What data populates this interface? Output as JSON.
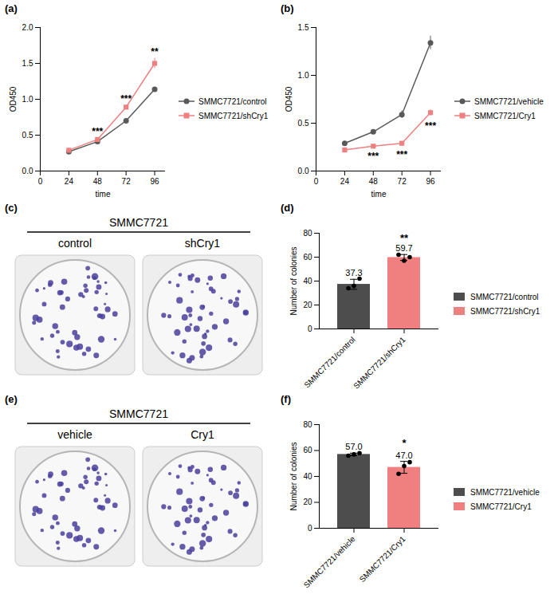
{
  "chart_data": [
    {
      "panel": "(a)",
      "type": "line",
      "x_label": "time",
      "y_label": "OD450",
      "x": [
        24,
        48,
        72,
        96
      ],
      "xlim": [
        0,
        105
      ],
      "xticks": [
        0,
        24,
        48,
        72,
        96
      ],
      "ylim": [
        0,
        2
      ],
      "yticks": [
        {
          "value": 0,
          "label": "0.0"
        },
        0.5,
        {
          "value": 1,
          "label": "1.0"
        },
        1.5,
        {
          "value": 2,
          "label": "2.0"
        }
      ],
      "legend": "right",
      "series": [
        {
          "name": "SMMC7721/control",
          "color": "#595959",
          "marker": "circle",
          "values": [
            0.27,
            0.41,
            0.7,
            1.14
          ],
          "errors": [
            0.01,
            0.01,
            0.02,
            0.02
          ]
        },
        {
          "name": "SMMC7721/shCry1",
          "color": "#f08080",
          "marker": "square",
          "values": [
            0.29,
            0.44,
            0.89,
            1.5
          ],
          "errors": [
            0.01,
            0.02,
            0.03,
            0.07
          ]
        }
      ],
      "annotations": [
        {
          "x": 48,
          "y": 0.55,
          "text": "***"
        },
        {
          "x": 72,
          "y": 1.0,
          "text": "***"
        },
        {
          "x": 96,
          "y": 1.66,
          "text": "**"
        }
      ]
    },
    {
      "panel": "(b)",
      "type": "line",
      "x_label": "time",
      "y_label": "OD450",
      "x": [
        24,
        48,
        72,
        96
      ],
      "xlim": [
        0,
        105
      ],
      "xticks": [
        0,
        24,
        48,
        72,
        96
      ],
      "ylim": [
        0,
        1.5
      ],
      "yticks": [
        {
          "value": 0,
          "label": "0.0"
        },
        0.5,
        {
          "value": 1,
          "label": "1.0"
        },
        1.5
      ],
      "legend": "right",
      "series": [
        {
          "name": "SMMC7721/vehicle",
          "color": "#595959",
          "marker": "circle",
          "values": [
            0.29,
            0.41,
            0.59,
            1.34
          ],
          "errors": [
            0.01,
            0.01,
            0.04,
            0.07
          ]
        },
        {
          "name": "SMMC7721/Cry1",
          "color": "#f08080",
          "marker": "square",
          "values": [
            0.22,
            0.26,
            0.29,
            0.61
          ],
          "errors": [
            0.01,
            0.01,
            0.02,
            0.03
          ]
        }
      ],
      "annotations": [
        {
          "x": 48,
          "y": 0.15,
          "text": "***"
        },
        {
          "x": 72,
          "y": 0.17,
          "text": "***"
        },
        {
          "x": 96,
          "y": 0.47,
          "text": "***"
        }
      ]
    },
    {
      "panel": "(d)",
      "type": "bar",
      "y_label": "Number of colonies",
      "categories": [
        "SMMC7721/control",
        "SMMC7721/shCry1"
      ],
      "values": [
        37.3,
        59.7
      ],
      "errors": [
        4.2,
        2.5
      ],
      "points": [
        [
          34,
          36,
          42
        ],
        [
          62,
          57,
          60
        ]
      ],
      "colors": [
        "#4d4d4d",
        "#f08080"
      ],
      "data_labels": true,
      "legend": "right",
      "ylim": [
        0,
        80
      ],
      "yticks": [
        0,
        20,
        40,
        60,
        80
      ],
      "annotations": [
        {
          "x": "SMMC7721/shCry1",
          "y": 73,
          "text": "**"
        }
      ]
    },
    {
      "panel": "(f)",
      "type": "bar",
      "y_label": "Number of colonies",
      "categories": [
        "SMMC7721/vehicle",
        "SMMC7721/Cry1"
      ],
      "values": [
        57,
        47
      ],
      "value_labels": [
        "57.0",
        "47.0"
      ],
      "errors": [
        1.0,
        4.6
      ],
      "points": [
        [
          56,
          57,
          58
        ],
        [
          42,
          48,
          51
        ]
      ],
      "colors": [
        "#4d4d4d",
        "#f08080"
      ],
      "data_labels": true,
      "legend": "right",
      "ylim": [
        0,
        80
      ],
      "yticks": [
        0,
        20,
        40,
        60,
        80
      ],
      "annotations": [
        {
          "x": "SMMC7721/Cry1",
          "y": 63,
          "text": "*"
        }
      ]
    }
  ],
  "images": [
    {
      "panel": "(c)",
      "header": "SMMC7721",
      "labels": [
        "control",
        "shCry1"
      ]
    },
    {
      "panel": "(e)",
      "header": "SMMC7721",
      "labels": [
        "vehicle",
        "Cry1"
      ]
    }
  ]
}
